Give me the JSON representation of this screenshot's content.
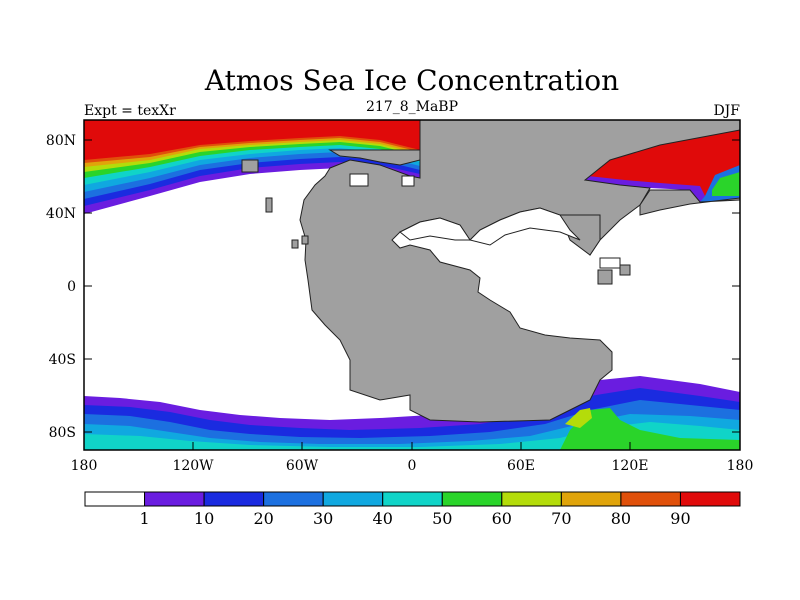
{
  "title": "Atmos Sea Ice Concentration",
  "left_label": "Expt = texXr",
  "center_label": "217_8_MaBP",
  "right_label": "DJF",
  "y_ticks": [
    "80N",
    "40N",
    "0",
    "40S",
    "80S"
  ],
  "x_ticks": [
    "180",
    "120W",
    "60W",
    "0",
    "60E",
    "120E",
    "180"
  ],
  "colorbar": {
    "labels": [
      "1",
      "10",
      "20",
      "30",
      "40",
      "50",
      "60",
      "70",
      "80",
      "90"
    ],
    "colors": [
      "#ffffff",
      "#6a1de0",
      "#1a2be0",
      "#1c70e0",
      "#10a8e0",
      "#10d4c8",
      "#2ad42a",
      "#b4dc0a",
      "#e0a40a",
      "#e0500a",
      "#e00a0a"
    ]
  },
  "colors": {
    "land": "#a0a0a0",
    "ice_low": "#6a1de0",
    "ice_high": "#e00a0a"
  }
}
